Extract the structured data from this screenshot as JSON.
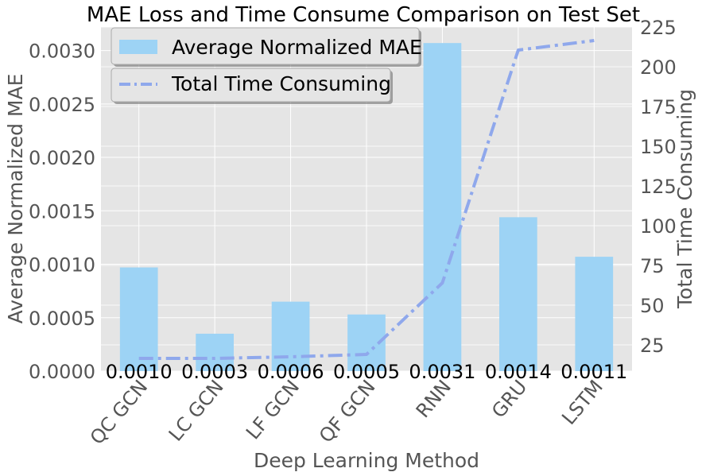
{
  "chart_data": {
    "type": "bar+line",
    "title": "MAE Loss and Time Consume Comparison on Test Set",
    "xlabel": "Deep Learning Method",
    "ylabel_left": "Average Normalized MAE",
    "ylabel_right": "Total Time Consuming",
    "categories": [
      "QC GCN",
      "LC GCN",
      "LF GCN",
      "QF GCN",
      "RNN",
      "GRU",
      "LSTM"
    ],
    "bar_series": {
      "name": "Average Normalized MAE",
      "values": [
        0.00097,
        0.00035,
        0.00065,
        0.00053,
        0.00307,
        0.00144,
        0.00107
      ],
      "data_labels": [
        "0.0010",
        "0.0003",
        "0.0006",
        "0.0005",
        "0.0031",
        "0.0014",
        "0.0011"
      ],
      "color": "#9dd3f5"
    },
    "line_series": {
      "name": "Total Time Consuming",
      "values": [
        16.5,
        16.5,
        17.5,
        19,
        64,
        210.5,
        216.5
      ],
      "color": "#8fa8ec",
      "style": "dash-dot"
    },
    "ylim_left": [
      0,
      0.00322
    ],
    "ylim_right": [
      8.5,
      225
    ],
    "yticks_left": [
      "0.0000",
      "0.0005",
      "0.0010",
      "0.0015",
      "0.0020",
      "0.0025",
      "0.0030"
    ],
    "yticks_left_values": [
      0,
      0.0005,
      0.001,
      0.0015,
      0.002,
      0.0025,
      0.003
    ],
    "yticks_right": [
      "25",
      "50",
      "75",
      "100",
      "125",
      "150",
      "175",
      "200",
      "225"
    ],
    "yticks_right_values": [
      25,
      50,
      75,
      100,
      125,
      150,
      175,
      200,
      225
    ],
    "legend_bar_placement": "top-left",
    "legend_line_placement": "top-left, below",
    "grid": true,
    "background_color": "#e5e5e5"
  }
}
